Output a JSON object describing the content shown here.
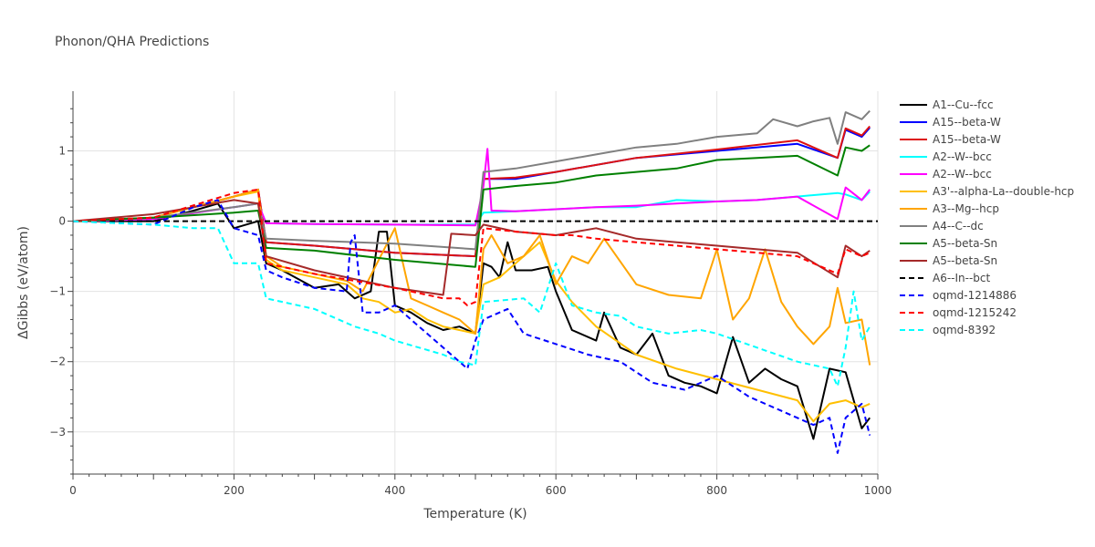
{
  "chart_data": {
    "type": "line",
    "title": "Phonon/QHA Predictions",
    "xlabel": "Temperature (K)",
    "ylabel": "ΔGibbs (eV/atom)",
    "xlim": [
      0,
      1000
    ],
    "ylim": [
      -3.6,
      1.85
    ],
    "xticks": [
      0,
      200,
      400,
      600,
      800,
      1000
    ],
    "yticks": [
      -3,
      -2,
      -1,
      0,
      1
    ],
    "grid": true,
    "legend_position": "right",
    "series": [
      {
        "name": "A1--Cu--fcc",
        "color": "#000000",
        "dash": "solid",
        "x": [
          0,
          100,
          150,
          180,
          200,
          230,
          240,
          260,
          300,
          330,
          350,
          370,
          380,
          390,
          400,
          420,
          440,
          460,
          480,
          500,
          510,
          520,
          530,
          540,
          550,
          570,
          590,
          600,
          620,
          650,
          660,
          680,
          700,
          720,
          740,
          760,
          780,
          800,
          820,
          840,
          860,
          880,
          900,
          920,
          940,
          960,
          980,
          990
        ],
        "y": [
          0,
          0,
          0.15,
          0.25,
          -0.1,
          0,
          -0.6,
          -0.7,
          -0.95,
          -0.9,
          -1.1,
          -1.0,
          -0.15,
          -0.15,
          -1.2,
          -1.3,
          -1.45,
          -1.55,
          -1.5,
          -1.6,
          -0.6,
          -0.65,
          -0.8,
          -0.3,
          -0.7,
          -0.7,
          -0.65,
          -1.0,
          -1.55,
          -1.7,
          -1.3,
          -1.8,
          -1.9,
          -1.6,
          -2.2,
          -2.3,
          -2.35,
          -2.45,
          -1.65,
          -2.3,
          -2.1,
          -2.25,
          -2.35,
          -3.1,
          -2.1,
          -2.15,
          -2.95,
          -2.8
        ]
      },
      {
        "name": "A15--beta-W",
        "color": "#0000ff",
        "dash": "solid",
        "x": [
          0,
          100,
          200,
          230,
          240,
          300,
          400,
          500,
          510,
          550,
          600,
          700,
          800,
          900,
          950,
          960,
          980,
          990
        ],
        "y": [
          0,
          0.05,
          0.35,
          0.45,
          -0.3,
          -0.35,
          -0.45,
          -0.5,
          0.6,
          0.6,
          0.7,
          0.9,
          1.0,
          1.1,
          0.9,
          1.3,
          1.2,
          1.33
        ]
      },
      {
        "name": "A15--beta-W",
        "color": "#dd1111",
        "dash": "solid",
        "x": [
          0,
          100,
          200,
          230,
          240,
          300,
          400,
          500,
          510,
          550,
          600,
          700,
          800,
          900,
          950,
          960,
          980,
          990
        ],
        "y": [
          0,
          0.05,
          0.35,
          0.45,
          -0.3,
          -0.35,
          -0.45,
          -0.5,
          0.6,
          0.62,
          0.7,
          0.9,
          1.02,
          1.15,
          0.9,
          1.32,
          1.22,
          1.35
        ]
      },
      {
        "name": "A2--W--bcc",
        "color": "#00ffff",
        "dash": "solid",
        "x": [
          0,
          100,
          200,
          230,
          240,
          300,
          400,
          500,
          510,
          550,
          600,
          650,
          700,
          750,
          800,
          850,
          900,
          950,
          960,
          980,
          990
        ],
        "y": [
          0,
          0.03,
          0.2,
          0.25,
          -0.03,
          -0.04,
          -0.05,
          -0.05,
          0.12,
          0.14,
          0.17,
          0.2,
          0.2,
          0.3,
          0.28,
          0.3,
          0.35,
          0.4,
          0.38,
          0.3,
          0.42
        ]
      },
      {
        "name": "A2--W--bcc",
        "color": "#ff00ff",
        "dash": "solid",
        "x": [
          0,
          100,
          200,
          230,
          240,
          300,
          400,
          500,
          510,
          515,
          520,
          550,
          600,
          650,
          700,
          750,
          800,
          850,
          900,
          950,
          960,
          980,
          990
        ],
        "y": [
          0,
          0.03,
          0.2,
          0.25,
          -0.03,
          -0.04,
          -0.05,
          -0.06,
          0.5,
          1.03,
          0.15,
          0.14,
          0.17,
          0.2,
          0.22,
          0.25,
          0.28,
          0.3,
          0.35,
          0.03,
          0.48,
          0.3,
          0.45
        ]
      },
      {
        "name": "A3'--alpha-La--double-hcp",
        "color": "#ffbf00",
        "dash": "solid",
        "x": [
          0,
          100,
          200,
          230,
          240,
          260,
          300,
          340,
          360,
          380,
          400,
          420,
          440,
          460,
          480,
          500,
          510,
          530,
          550,
          580,
          600,
          620,
          650,
          700,
          750,
          800,
          850,
          900,
          920,
          940,
          960,
          980,
          990
        ],
        "y": [
          0,
          0.05,
          0.35,
          0.42,
          -0.55,
          -0.7,
          -0.8,
          -0.9,
          -1.1,
          -1.15,
          -1.3,
          -1.25,
          -1.4,
          -1.5,
          -1.55,
          -1.6,
          -0.9,
          -0.8,
          -0.6,
          -0.3,
          -0.85,
          -1.15,
          -1.5,
          -1.9,
          -2.1,
          -2.25,
          -2.4,
          -2.55,
          -2.85,
          -2.6,
          -2.55,
          -2.65,
          -2.6
        ]
      },
      {
        "name": "A3--Mg--hcp",
        "color": "#ffa500",
        "dash": "solid",
        "x": [
          0,
          100,
          200,
          230,
          240,
          260,
          300,
          340,
          360,
          400,
          420,
          440,
          460,
          480,
          500,
          510,
          520,
          540,
          560,
          580,
          600,
          620,
          640,
          660,
          700,
          740,
          780,
          800,
          820,
          840,
          860,
          880,
          900,
          920,
          940,
          950,
          960,
          980,
          990
        ],
        "y": [
          0,
          0.05,
          0.35,
          0.45,
          -0.5,
          -0.65,
          -0.75,
          -0.85,
          -1.0,
          -0.1,
          -1.1,
          -1.2,
          -1.3,
          -1.4,
          -1.6,
          -0.4,
          -0.2,
          -0.6,
          -0.5,
          -0.2,
          -0.9,
          -0.5,
          -0.6,
          -0.25,
          -0.9,
          -1.05,
          -1.1,
          -0.4,
          -1.4,
          -1.1,
          -0.4,
          -1.15,
          -1.5,
          -1.75,
          -1.5,
          -0.95,
          -1.45,
          -1.4,
          -2.05
        ]
      },
      {
        "name": "A4--C--dc",
        "color": "#808080",
        "dash": "solid",
        "x": [
          0,
          100,
          200,
          230,
          240,
          300,
          400,
          500,
          510,
          550,
          600,
          650,
          700,
          750,
          800,
          850,
          870,
          900,
          920,
          940,
          950,
          960,
          980,
          990
        ],
        "y": [
          0,
          0.05,
          0.2,
          0.25,
          -0.25,
          -0.28,
          -0.32,
          -0.4,
          0.7,
          0.75,
          0.85,
          0.95,
          1.05,
          1.1,
          1.2,
          1.25,
          1.45,
          1.35,
          1.42,
          1.47,
          1.1,
          1.55,
          1.45,
          1.57
        ]
      },
      {
        "name": "A5--beta-Sn",
        "color": "#008000",
        "dash": "solid",
        "x": [
          0,
          100,
          200,
          230,
          240,
          300,
          400,
          500,
          510,
          550,
          600,
          650,
          700,
          750,
          800,
          850,
          900,
          950,
          960,
          980,
          990
        ],
        "y": [
          0,
          0.05,
          0.12,
          0.15,
          -0.38,
          -0.42,
          -0.55,
          -0.65,
          0.45,
          0.5,
          0.55,
          0.65,
          0.7,
          0.75,
          0.87,
          0.9,
          0.93,
          0.65,
          1.05,
          1.0,
          1.08
        ]
      },
      {
        "name": "A5--beta-Sn",
        "color": "#a52a2a",
        "dash": "solid",
        "x": [
          0,
          100,
          150,
          200,
          230,
          240,
          300,
          400,
          460,
          470,
          500,
          510,
          550,
          600,
          650,
          700,
          750,
          800,
          850,
          900,
          950,
          960,
          980,
          990
        ],
        "y": [
          0,
          0.1,
          0.2,
          0.3,
          0.25,
          -0.5,
          -0.7,
          -0.95,
          -1.05,
          -0.18,
          -0.2,
          -0.05,
          -0.15,
          -0.2,
          -0.1,
          -0.25,
          -0.3,
          -0.35,
          -0.4,
          -0.45,
          -0.8,
          -0.35,
          -0.5,
          -0.42
        ]
      },
      {
        "name": "A6--In--bct",
        "color": "#000000",
        "dash": "dashed",
        "x": [
          0,
          1000
        ],
        "y": [
          0,
          0
        ]
      },
      {
        "name": "oqmd-1214886",
        "color": "#0000ff",
        "dash": "dashed",
        "x": [
          0,
          100,
          150,
          180,
          200,
          230,
          240,
          260,
          300,
          340,
          345,
          350,
          360,
          380,
          400,
          420,
          440,
          460,
          480,
          490,
          500,
          510,
          540,
          560,
          600,
          640,
          680,
          720,
          760,
          800,
          840,
          880,
          920,
          940,
          950,
          960,
          980,
          990
        ],
        "y": [
          0,
          -0.05,
          0.2,
          0.3,
          -0.1,
          -0.2,
          -0.7,
          -0.8,
          -0.95,
          -1.0,
          -0.3,
          -0.2,
          -1.3,
          -1.3,
          -1.2,
          -1.4,
          -1.6,
          -1.8,
          -2.0,
          -2.1,
          -1.7,
          -1.4,
          -1.25,
          -1.6,
          -1.75,
          -1.9,
          -2.0,
          -2.3,
          -2.4,
          -2.2,
          -2.5,
          -2.7,
          -2.9,
          -2.8,
          -3.3,
          -2.8,
          -2.6,
          -3.05
        ]
      },
      {
        "name": "oqmd-1215242",
        "color": "#ff0000",
        "dash": "dashed",
        "x": [
          0,
          100,
          200,
          230,
          240,
          300,
          400,
          440,
          460,
          480,
          490,
          500,
          510,
          550,
          600,
          620,
          650,
          700,
          750,
          800,
          850,
          900,
          950,
          960,
          980,
          990
        ],
        "y": [
          0,
          0.05,
          0.4,
          0.45,
          -0.6,
          -0.75,
          -0.95,
          -1.05,
          -1.1,
          -1.1,
          -1.2,
          -1.15,
          -0.1,
          -0.15,
          -0.2,
          -0.2,
          -0.25,
          -0.3,
          -0.35,
          -0.4,
          -0.45,
          -0.5,
          -0.75,
          -0.4,
          -0.5,
          -0.45
        ]
      },
      {
        "name": "oqmd-8392",
        "color": "#00ffff",
        "dash": "dashed",
        "x": [
          0,
          100,
          150,
          180,
          200,
          230,
          240,
          300,
          350,
          380,
          400,
          430,
          460,
          480,
          500,
          510,
          560,
          580,
          600,
          620,
          650,
          680,
          700,
          740,
          780,
          800,
          850,
          900,
          940,
          950,
          960,
          970,
          980,
          990
        ],
        "y": [
          0,
          -0.05,
          -0.1,
          -0.1,
          -0.6,
          -0.6,
          -1.1,
          -1.25,
          -1.5,
          -1.6,
          -1.7,
          -1.8,
          -1.9,
          -2.0,
          -2.05,
          -1.15,
          -1.1,
          -1.3,
          -0.6,
          -1.2,
          -1.3,
          -1.35,
          -1.5,
          -1.6,
          -1.55,
          -1.6,
          -1.8,
          -2.0,
          -2.1,
          -2.35,
          -1.8,
          -1.0,
          -1.7,
          -1.5
        ]
      }
    ]
  }
}
